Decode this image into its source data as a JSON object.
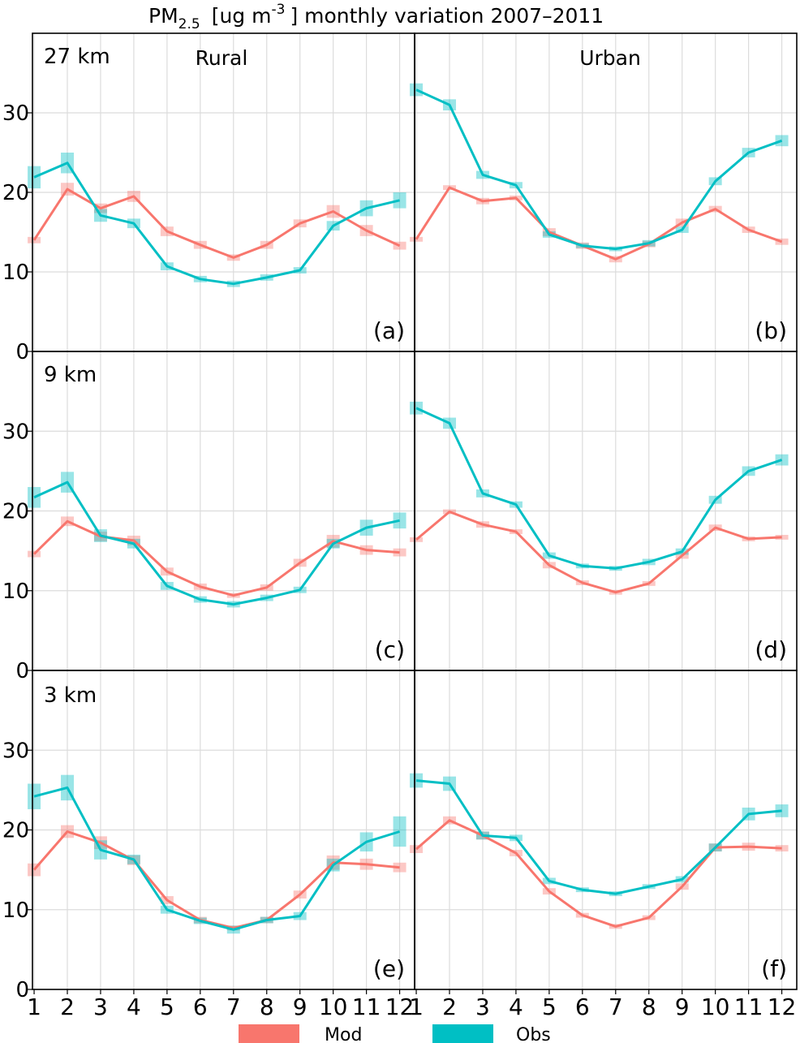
{
  "title": {
    "prefix": "PM",
    "subscript": "2.5",
    "units_open": "[ug m",
    "superscript": "-3",
    "units_close": "] monthly variation 2007–2011"
  },
  "colors": {
    "mod": "#f8766d",
    "obs": "#00bfc4"
  },
  "legend": [
    {
      "label": "Mod",
      "color": "#f8766d"
    },
    {
      "label": "Obs",
      "color": "#00bfc4"
    }
  ],
  "column_labels": [
    "Rural",
    "Urban"
  ],
  "row_labels": [
    "27 km",
    "9 km",
    "3 km"
  ],
  "y_ticks": [
    "0",
    "10",
    "20",
    "30"
  ],
  "x_ticks": [
    "1",
    "2",
    "3",
    "4",
    "5",
    "6",
    "7",
    "8",
    "9",
    "10",
    "11",
    "12"
  ],
  "chart_data": {
    "type": "line",
    "x": [
      1,
      2,
      3,
      4,
      5,
      6,
      7,
      8,
      9,
      10,
      11,
      12
    ],
    "ylim": [
      0,
      40
    ],
    "xlim": [
      0.95,
      12.45
    ],
    "grid": true,
    "legend_position": "bottom",
    "panels": [
      {
        "tag": "(a)",
        "row": 0,
        "col": 0,
        "series": [
          {
            "name": "Mod",
            "values": [
              14.0,
              20.4,
              18.0,
              19.5,
              15.1,
              13.4,
              11.8,
              13.4,
              16.1,
              17.6,
              15.2,
              13.3
            ],
            "spread": [
              0.4,
              0.8,
              0.6,
              0.7,
              0.6,
              0.5,
              0.4,
              0.5,
              0.5,
              0.8,
              0.7,
              0.5
            ]
          },
          {
            "name": "Obs",
            "values": [
              21.9,
              23.7,
              17.1,
              16.1,
              10.7,
              9.1,
              8.5,
              9.3,
              10.2,
              15.8,
              18.0,
              19.0
            ],
            "spread": [
              1.4,
              1.3,
              0.8,
              0.6,
              0.5,
              0.4,
              0.4,
              0.4,
              0.4,
              0.6,
              1.0,
              1.0
            ]
          }
        ]
      },
      {
        "tag": "(b)",
        "row": 0,
        "col": 1,
        "series": [
          {
            "name": "Mod",
            "values": [
              14.1,
              20.6,
              18.9,
              19.3,
              15.0,
              13.3,
              11.6,
              13.5,
              16.2,
              17.9,
              15.3,
              13.8
            ],
            "spread": [
              0.3,
              0.3,
              0.4,
              0.3,
              0.5,
              0.4,
              0.4,
              0.4,
              0.5,
              0.4,
              0.4,
              0.4
            ]
          },
          {
            "name": "Obs",
            "values": [
              32.9,
              31.0,
              22.2,
              20.9,
              14.7,
              13.3,
              12.9,
              13.6,
              15.3,
              21.4,
              25.0,
              26.5
            ],
            "spread": [
              0.8,
              0.7,
              0.5,
              0.4,
              0.4,
              0.3,
              0.3,
              0.4,
              0.4,
              0.5,
              0.6,
              0.7
            ]
          }
        ]
      },
      {
        "tag": "(c)",
        "row": 1,
        "col": 0,
        "series": [
          {
            "name": "Mod",
            "values": [
              14.6,
              18.7,
              16.8,
              16.3,
              12.4,
              10.5,
              9.4,
              10.4,
              13.5,
              16.2,
              15.1,
              14.8
            ],
            "spread": [
              0.4,
              0.6,
              0.6,
              0.6,
              0.5,
              0.4,
              0.3,
              0.4,
              0.5,
              0.8,
              0.6,
              0.5
            ]
          },
          {
            "name": "Obs",
            "values": [
              21.7,
              23.6,
              16.9,
              15.9,
              10.6,
              8.9,
              8.3,
              9.1,
              10.1,
              15.9,
              17.9,
              18.8
            ],
            "spread": [
              1.3,
              1.3,
              0.8,
              0.6,
              0.5,
              0.4,
              0.4,
              0.4,
              0.4,
              0.6,
              1.0,
              1.0
            ]
          }
        ]
      },
      {
        "tag": "(d)",
        "row": 1,
        "col": 1,
        "series": [
          {
            "name": "Mod",
            "values": [
              16.4,
              19.9,
              18.3,
              17.4,
              13.2,
              11.0,
              9.8,
              10.9,
              14.4,
              17.9,
              16.5,
              16.7
            ],
            "spread": [
              0.3,
              0.3,
              0.4,
              0.3,
              0.4,
              0.3,
              0.3,
              0.3,
              0.4,
              0.4,
              0.3,
              0.3
            ]
          },
          {
            "name": "Obs",
            "values": [
              32.9,
              31.0,
              22.2,
              20.8,
              14.4,
              13.1,
              12.8,
              13.6,
              14.9,
              21.4,
              25.0,
              26.4
            ],
            "spread": [
              0.8,
              0.7,
              0.5,
              0.4,
              0.4,
              0.3,
              0.3,
              0.4,
              0.4,
              0.5,
              0.6,
              0.7
            ]
          }
        ]
      },
      {
        "tag": "(e)",
        "row": 2,
        "col": 0,
        "series": [
          {
            "name": "Mod",
            "values": [
              15.0,
              19.8,
              18.4,
              16.2,
              11.2,
              8.7,
              7.7,
              8.7,
              11.9,
              15.9,
              15.7,
              15.3
            ],
            "spread": [
              0.8,
              0.8,
              0.8,
              0.6,
              0.5,
              0.4,
              0.3,
              0.4,
              0.5,
              0.9,
              0.7,
              0.6
            ]
          },
          {
            "name": "Obs",
            "values": [
              24.2,
              25.3,
              17.5,
              16.3,
              10.0,
              8.6,
              7.5,
              8.7,
              9.2,
              15.6,
              18.5,
              19.8
            ],
            "spread": [
              1.6,
              1.6,
              1.2,
              0.6,
              0.5,
              0.4,
              0.5,
              0.4,
              0.5,
              0.8,
              1.2,
              1.9
            ]
          }
        ]
      },
      {
        "tag": "(f)",
        "row": 2,
        "col": 1,
        "series": [
          {
            "name": "Mod",
            "values": [
              17.6,
              21.2,
              19.3,
              17.1,
              12.3,
              9.3,
              7.9,
              9.0,
              12.9,
              17.8,
              17.9,
              17.7
            ],
            "spread": [
              0.5,
              0.5,
              0.5,
              0.4,
              0.4,
              0.3,
              0.3,
              0.3,
              0.4,
              0.5,
              0.5,
              0.4
            ]
          },
          {
            "name": "Obs",
            "values": [
              26.2,
              25.8,
              19.3,
              19.0,
              13.6,
              12.5,
              12.0,
              12.9,
              13.8,
              17.8,
              22.0,
              22.4
            ],
            "spread": [
              0.9,
              0.9,
              0.5,
              0.4,
              0.4,
              0.3,
              0.3,
              0.3,
              0.4,
              0.5,
              0.8,
              0.8
            ]
          }
        ]
      }
    ]
  }
}
